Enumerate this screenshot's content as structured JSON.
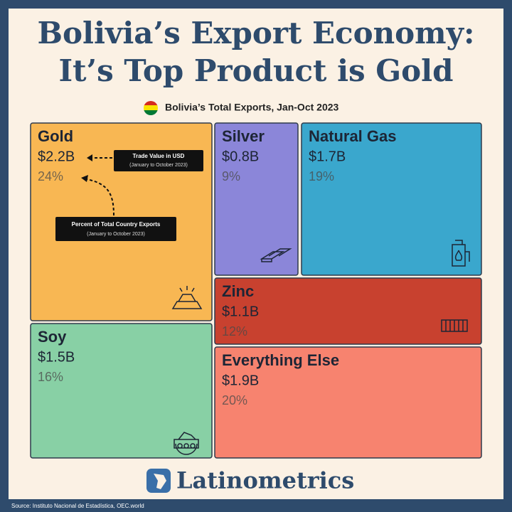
{
  "chart_data": {
    "type": "treemap",
    "title": [
      "Bolivia’s Export Economy:",
      "It’s Top Product is Gold"
    ],
    "subtitle": "Bolivia’s Total Exports, Jan-Oct 2023",
    "categories": [
      "Gold",
      "Soy",
      "Silver",
      "Natural Gas",
      "Zinc",
      "Everything Else"
    ],
    "values": [
      2.2,
      1.5,
      0.8,
      1.7,
      1.1,
      1.9
    ],
    "value_labels": [
      "$2.2B",
      "$1.5B",
      "$0.8B",
      "$1.7B",
      "$1.1B",
      "$1.9B"
    ],
    "percents": [
      24,
      16,
      9,
      19,
      12,
      20
    ],
    "percent_labels": [
      "24%",
      "16%",
      "9%",
      "19%",
      "12%",
      "20%"
    ],
    "colors": [
      "#f8b753",
      "#88d0a5",
      "#8b86d9",
      "#3aa7cd",
      "#c8412f",
      "#f7836f"
    ],
    "annotations": [
      {
        "title": "Trade Value in USD",
        "note": "(January to October 2023)"
      },
      {
        "title": "Percent of Total Country Exports",
        "note": "(January to October 2023)"
      }
    ],
    "brand": "Latinometrics",
    "source": "Source: Instituto Nacional de Estadística, OEC.world"
  }
}
